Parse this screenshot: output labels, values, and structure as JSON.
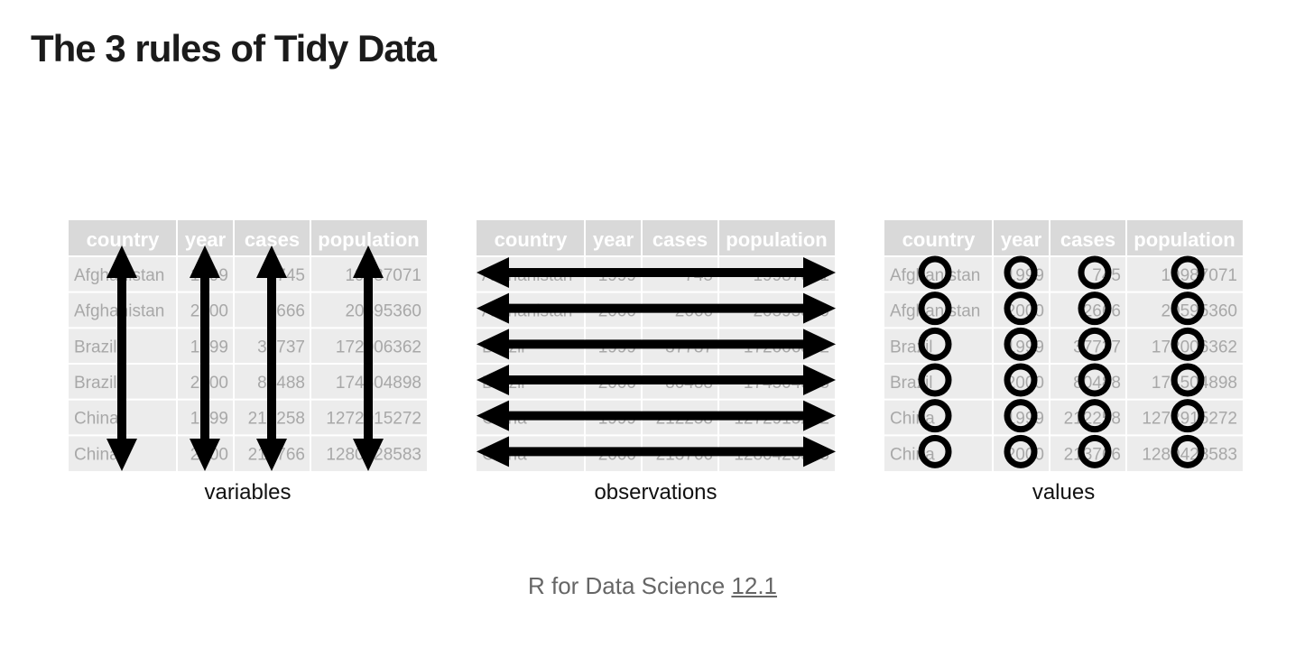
{
  "page": {
    "title": "The 3 rules of Tidy Data"
  },
  "table": {
    "columns": [
      "country",
      "year",
      "cases",
      "population"
    ],
    "rows": [
      [
        "Afghanistan",
        "1999",
        "745",
        "19987071"
      ],
      [
        "Afghanistan",
        "2000",
        "2666",
        "20595360"
      ],
      [
        "Brazil",
        "1999",
        "37737",
        "172006362"
      ],
      [
        "Brazil",
        "2000",
        "80488",
        "174504898"
      ],
      [
        "China",
        "1999",
        "212258",
        "1272915272"
      ],
      [
        "China",
        "2000",
        "213766",
        "1280428583"
      ]
    ]
  },
  "panels": [
    {
      "id": "variables",
      "caption": "variables",
      "overlay": "vertical-arrows"
    },
    {
      "id": "observations",
      "caption": "observations",
      "overlay": "horizontal-arrows"
    },
    {
      "id": "values",
      "caption": "values",
      "overlay": "circles"
    }
  ],
  "footer": {
    "text": "R for Data Science ",
    "link_label": "12.1"
  },
  "colors": {
    "header_bg": "#d9d9d9",
    "header_text": "#ffffff",
    "cell_bg": "#ececec",
    "cell_text": "#a8a8a8",
    "grid_line": "#ffffff",
    "overlay": "#000000"
  }
}
